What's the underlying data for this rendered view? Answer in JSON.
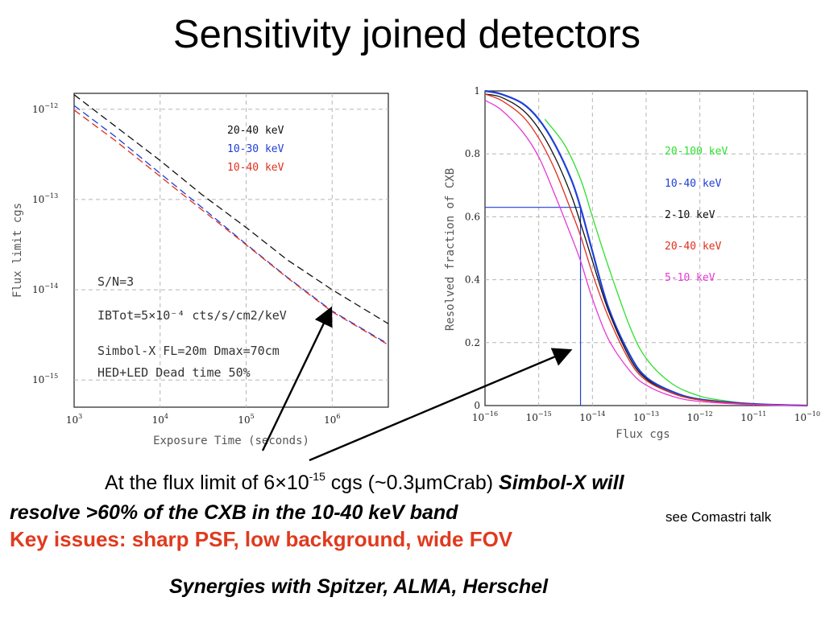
{
  "slide_title": "Sensitivity joined detectors",
  "caption": {
    "line1_a": "At the flux limit of 6",
    "line1_times": "×",
    "line1_b": "10",
    "line1_exp": "-15",
    "line1_c": " cgs (~0.3",
    "line1_mu": "μ",
    "line1_d": "mCrab) ",
    "line1_bold": "Simbol-X will",
    "line2": "resolve >60% of the CXB in the 10-40 keV band",
    "line2_note": "see Comastri talk",
    "line3": "Key issues: sharp PSF, low background, wide FOV",
    "line4": "Synergies with Spitzer, ALMA, Herschel"
  },
  "colors": {
    "black": "#111111",
    "blue": "#1f3fd6",
    "red": "#e0301e",
    "green": "#2ee02e",
    "magenta": "#e638d8",
    "caption_red": "#e03a1e"
  },
  "chart_data": [
    {
      "type": "line",
      "xlabel": "Exposure Time (seconds)",
      "ylabel": "Flux limit  cgs",
      "xscale": "log",
      "yscale": "log",
      "xlim": [
        1000,
        4500000
      ],
      "ylim": [
        5e-16,
        1.5e-12
      ],
      "grid": true,
      "legend_position": "top-right",
      "x_ticks": [
        {
          "base": "10",
          "exp": "3",
          "v": 1000
        },
        {
          "base": "10",
          "exp": "4",
          "v": 10000
        },
        {
          "base": "10",
          "exp": "5",
          "v": 100000
        },
        {
          "base": "10",
          "exp": "6",
          "v": 1000000
        }
      ],
      "y_ticks": [
        {
          "base": "10",
          "exp": "−12",
          "v": 1e-12
        },
        {
          "base": "10",
          "exp": "−13",
          "v": 1e-13
        },
        {
          "base": "10",
          "exp": "−14",
          "v": 1e-14
        },
        {
          "base": "10",
          "exp": "−15",
          "v": 1e-15
        }
      ],
      "annotations": [
        "S/N=3",
        "IBTot=5×10⁻⁴ cts/s/cm2/keV",
        "Simbol-X FL=20m Dmax=70cm",
        "HED+LED Dead time 50%"
      ],
      "series": [
        {
          "name": "20-40 keV",
          "color": "#111111",
          "dash": true,
          "x": [
            1000,
            3000,
            10000,
            30000,
            100000,
            300000,
            1000000,
            4500000
          ],
          "y": [
            1.45e-12,
            6.5e-13,
            2.7e-13,
            1.15e-13,
            4.9e-14,
            2.15e-14,
            1e-14,
            4.2e-15
          ]
        },
        {
          "name": "10-30 keV",
          "color": "#1f3fd6",
          "dash": true,
          "x": [
            1000,
            3000,
            10000,
            30000,
            100000,
            300000,
            1000000,
            4500000
          ],
          "y": [
            1.1e-12,
            5e-13,
            1.95e-13,
            8.3e-14,
            3.2e-14,
            1.38e-14,
            5.8e-15,
            2.5e-15
          ]
        },
        {
          "name": "10-40 keV",
          "color": "#e0301e",
          "dash": true,
          "x": [
            1000,
            3000,
            10000,
            30000,
            100000,
            300000,
            1000000,
            4500000
          ],
          "y": [
            9.8e-13,
            4.5e-13,
            1.8e-13,
            7.8e-14,
            3.15e-14,
            1.36e-14,
            5.7e-15,
            2.45e-15
          ]
        }
      ]
    },
    {
      "type": "line",
      "xlabel": "Flux cgs",
      "ylabel": "Resolved fraction of CXB",
      "xscale": "log",
      "yscale": "linear",
      "xlim": [
        1e-16,
        1e-10
      ],
      "ylim": [
        0,
        1
      ],
      "grid": true,
      "legend_position": "right",
      "x_ticks": [
        {
          "base": "10",
          "exp": "−16",
          "v": 1e-16
        },
        {
          "base": "10",
          "exp": "−15",
          "v": 1e-15
        },
        {
          "base": "10",
          "exp": "−14",
          "v": 1e-14
        },
        {
          "base": "10",
          "exp": "−13",
          "v": 1e-13
        },
        {
          "base": "10",
          "exp": "−12",
          "v": 1e-12
        },
        {
          "base": "10",
          "exp": "−11",
          "v": 1e-11
        },
        {
          "base": "10",
          "exp": "−10",
          "v": 1e-10
        }
      ],
      "y_ticks": [
        "0",
        "0.2",
        "0.4",
        "0.6",
        "0.8",
        "1"
      ],
      "marker": {
        "flux": 6e-15,
        "fraction": 0.63
      },
      "series": [
        {
          "name": "20-100 keV",
          "color": "#2ee02e",
          "x": [
            1.3e-15,
            3e-15,
            6e-15,
            1e-14,
            2e-14,
            5e-14,
            1e-13,
            3e-13,
            1e-12,
            3e-12,
            1e-11,
            1e-10
          ],
          "y": [
            0.91,
            0.83,
            0.72,
            0.6,
            0.44,
            0.25,
            0.15,
            0.07,
            0.03,
            0.015,
            0.005,
            0.0
          ]
        },
        {
          "name": "10-40 keV",
          "color": "#1f3fd6",
          "x": [
            1e-16,
            2e-16,
            5e-16,
            1e-15,
            2e-15,
            4e-15,
            6e-15,
            1e-14,
            2e-14,
            5e-14,
            1e-13,
            3e-13,
            1e-12,
            1e-11,
            1e-10
          ],
          "y": [
            1.0,
            0.99,
            0.96,
            0.91,
            0.83,
            0.72,
            0.63,
            0.49,
            0.31,
            0.16,
            0.09,
            0.045,
            0.02,
            0.005,
            0.0
          ]
        },
        {
          "name": "2-10 keV",
          "color": "#111111",
          "x": [
            1e-16,
            2e-16,
            5e-16,
            1e-15,
            2e-15,
            4e-15,
            6e-15,
            1e-14,
            2e-14,
            5e-14,
            1e-13,
            3e-13,
            1e-12,
            1e-11,
            1e-10
          ],
          "y": [
            0.99,
            0.98,
            0.94,
            0.88,
            0.79,
            0.67,
            0.58,
            0.46,
            0.3,
            0.15,
            0.085,
            0.04,
            0.018,
            0.004,
            0.0
          ]
        },
        {
          "name": "20-40 keV",
          "color": "#e0301e",
          "x": [
            1e-16,
            2e-16,
            5e-16,
            1e-15,
            2e-15,
            4e-15,
            6e-15,
            1e-14,
            2e-14,
            5e-14,
            1e-13,
            3e-13,
            1e-12,
            1e-11,
            1e-10
          ],
          "y": [
            0.99,
            0.97,
            0.92,
            0.85,
            0.75,
            0.62,
            0.54,
            0.42,
            0.28,
            0.14,
            0.08,
            0.04,
            0.018,
            0.004,
            0.0
          ]
        },
        {
          "name": "5-10 keV",
          "color": "#e638d8",
          "x": [
            1e-16,
            2e-16,
            5e-16,
            1e-15,
            2e-15,
            4e-15,
            6e-15,
            1e-14,
            2e-14,
            5e-14,
            1e-13,
            3e-13,
            1e-12,
            1e-11,
            1e-10
          ],
          "y": [
            0.97,
            0.94,
            0.87,
            0.79,
            0.67,
            0.54,
            0.46,
            0.34,
            0.21,
            0.11,
            0.065,
            0.03,
            0.013,
            0.003,
            0.0
          ]
        }
      ]
    }
  ]
}
